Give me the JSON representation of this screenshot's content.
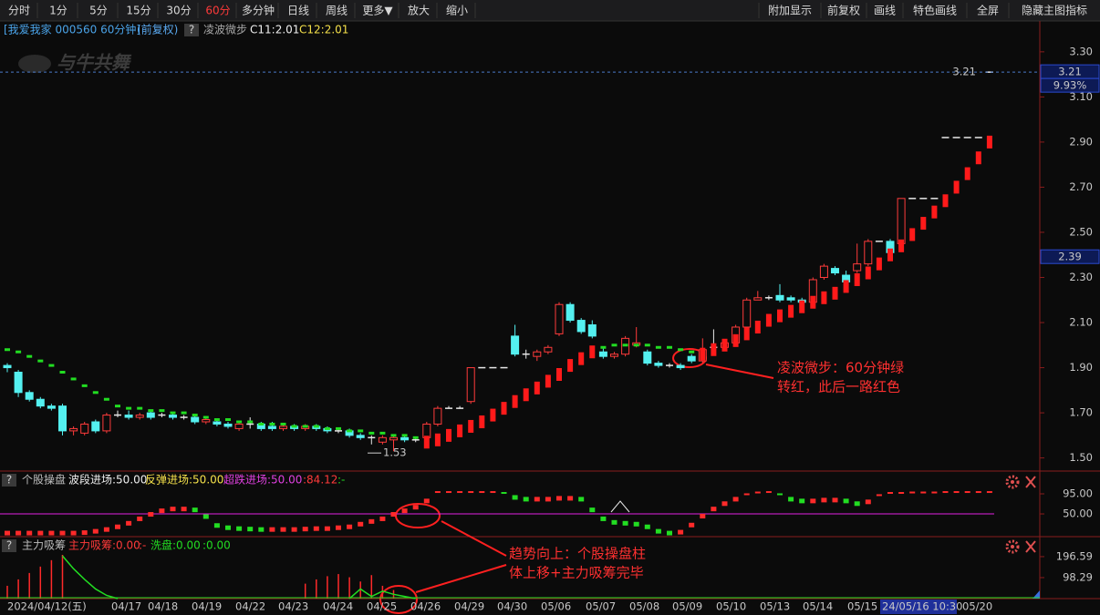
{
  "toolbar": {
    "left": [
      "分时",
      "1分",
      "5分",
      "15分",
      "30分",
      "60分",
      "多分钟",
      "日线",
      "周线",
      "更多▼",
      "放大",
      "缩小"
    ],
    "right": [
      "附加显示",
      "前复权",
      "画线",
      "特色画线",
      "全屏",
      "隐藏主图指标"
    ],
    "active_index": 5
  },
  "header": {
    "stock": "[我爱我家 000560 60分钟]",
    "adjust": "(前复权)",
    "help": "?",
    "indicator": "凌波微步",
    "c11": "C11:2.01",
    "c12": "C12:2.01"
  },
  "watermark": "与牛共舞",
  "panel2_header": {
    "help": "?",
    "name": "个股操盘",
    "a": "波段进场:50.00",
    "b": "反弹进场:50.00",
    "c": "超跌进场:50.00",
    "d": ":84.12",
    "e": ":-"
  },
  "panel3_header": {
    "help": "?",
    "name": "主力吸筹",
    "a": "主力吸筹:0.00",
    "b": ":-",
    "c": "洗盘:0.00",
    "d": ":0.00"
  },
  "annotations": [
    [
      "凌波微步：60分钟绿",
      "转红，此后一路红色"
    ],
    [
      "趋势向上：个股操盘柱",
      "体上移+主力吸筹完毕"
    ]
  ],
  "x_labels": [
    "2024/04/12(五)",
    "04/17",
    "04/18",
    "04/19",
    "04/22",
    "04/23",
    "04/24",
    "04/25",
    "04/26",
    "04/29",
    "04/30",
    "05/06",
    "05/07",
    "05/08",
    "05/09",
    "05/10",
    "05/13",
    "05/14",
    "05/15",
    "24/05/16 10:30",
    "05/20"
  ],
  "x_highlight_index": 19,
  "chart_data": [
    {
      "type": "candlestick",
      "ylim": [
        1.45,
        3.36
      ],
      "yticks": [
        {
          "value": 1.5,
          "label": "1.50"
        },
        {
          "value": 1.7,
          "label": "1.70"
        },
        {
          "value": 1.9,
          "label": "1.90"
        },
        {
          "value": 2.1,
          "label": "2.10"
        },
        {
          "value": 2.3,
          "label": "2.30"
        },
        {
          "value": 2.5,
          "label": "2.50"
        },
        {
          "value": 2.7,
          "label": "2.70"
        },
        {
          "value": 2.9,
          "label": "2.90"
        },
        {
          "value": 3.1,
          "label": "3.10"
        },
        {
          "value": 3.3,
          "label": "3.30"
        }
      ],
      "up_color": "#ff3b3b",
      "down_color": "#54f0f0",
      "flat_color": "#e8e8e8",
      "ohlc": [
        [
          1.91,
          1.92,
          1.88,
          1.9
        ],
        [
          1.88,
          1.89,
          1.77,
          1.79
        ],
        [
          1.79,
          1.8,
          1.75,
          1.76
        ],
        [
          1.76,
          1.77,
          1.72,
          1.73
        ],
        [
          1.73,
          1.74,
          1.71,
          1.72
        ],
        [
          1.73,
          1.74,
          1.6,
          1.62
        ],
        [
          1.62,
          1.64,
          1.6,
          1.63
        ],
        [
          1.61,
          1.66,
          1.6,
          1.65
        ],
        [
          1.66,
          1.67,
          1.61,
          1.62
        ],
        [
          1.62,
          1.7,
          1.61,
          1.69
        ],
        [
          1.69,
          1.71,
          1.68,
          1.69
        ],
        [
          1.69,
          1.71,
          1.67,
          1.68
        ],
        [
          1.68,
          1.7,
          1.67,
          1.69
        ],
        [
          1.7,
          1.71,
          1.67,
          1.68
        ],
        [
          1.69,
          1.7,
          1.68,
          1.69
        ],
        [
          1.69,
          1.7,
          1.67,
          1.68
        ],
        [
          1.68,
          1.69,
          1.67,
          1.68
        ],
        [
          1.68,
          1.69,
          1.65,
          1.66
        ],
        [
          1.66,
          1.68,
          1.65,
          1.67
        ],
        [
          1.66,
          1.67,
          1.64,
          1.65
        ],
        [
          1.65,
          1.66,
          1.63,
          1.64
        ],
        [
          1.63,
          1.66,
          1.62,
          1.65
        ],
        [
          1.65,
          1.68,
          1.63,
          1.65
        ],
        [
          1.65,
          1.66,
          1.62,
          1.63
        ],
        [
          1.64,
          1.66,
          1.62,
          1.63
        ],
        [
          1.63,
          1.65,
          1.62,
          1.64
        ],
        [
          1.64,
          1.65,
          1.62,
          1.63
        ],
        [
          1.63,
          1.65,
          1.62,
          1.64
        ],
        [
          1.64,
          1.65,
          1.62,
          1.63
        ],
        [
          1.63,
          1.64,
          1.61,
          1.62
        ],
        [
          1.62,
          1.63,
          1.61,
          1.62
        ],
        [
          1.62,
          1.63,
          1.59,
          1.6
        ],
        [
          1.6,
          1.61,
          1.58,
          1.59
        ],
        [
          1.59,
          1.6,
          1.56,
          1.59
        ],
        [
          1.57,
          1.6,
          1.56,
          1.59
        ],
        [
          1.58,
          1.6,
          1.53,
          1.59
        ],
        [
          1.59,
          1.6,
          1.57,
          1.58
        ],
        [
          1.58,
          1.59,
          1.57,
          1.58
        ],
        [
          1.59,
          1.66,
          1.58,
          1.65
        ],
        [
          1.65,
          1.73,
          1.64,
          1.72
        ],
        [
          1.72,
          1.73,
          1.72,
          1.72
        ],
        [
          1.72,
          1.73,
          1.72,
          1.72
        ],
        [
          1.75,
          1.9,
          1.74,
          1.9
        ],
        [
          1.9,
          1.9,
          1.9,
          1.9
        ],
        [
          1.9,
          1.9,
          1.9,
          1.9
        ],
        [
          1.9,
          1.9,
          1.9,
          1.9
        ],
        [
          2.04,
          2.09,
          1.95,
          1.96
        ],
        [
          1.96,
          1.98,
          1.94,
          1.96
        ],
        [
          1.95,
          1.98,
          1.93,
          1.97
        ],
        [
          1.97,
          2.0,
          1.96,
          1.99
        ],
        [
          2.05,
          2.19,
          2.04,
          2.18
        ],
        [
          2.18,
          2.19,
          2.1,
          2.11
        ],
        [
          2.11,
          2.12,
          2.05,
          2.06
        ],
        [
          2.09,
          2.11,
          2.03,
          2.04
        ],
        [
          1.97,
          1.99,
          1.94,
          1.95
        ],
        [
          1.95,
          1.97,
          1.94,
          1.96
        ],
        [
          1.96,
          2.04,
          1.95,
          2.03
        ],
        [
          2.0,
          2.08,
          1.99,
          2.01
        ],
        [
          1.97,
          1.98,
          1.91,
          1.92
        ],
        [
          1.92,
          1.93,
          1.9,
          1.91
        ],
        [
          1.91,
          1.92,
          1.9,
          1.91
        ],
        [
          1.91,
          1.92,
          1.89,
          1.9
        ],
        [
          1.95,
          1.96,
          1.92,
          1.93
        ],
        [
          1.93,
          2.03,
          1.92,
          1.98
        ],
        [
          1.99,
          2.07,
          1.98,
          1.99
        ],
        [
          1.99,
          2.02,
          1.99,
          2.01
        ],
        [
          2.01,
          2.09,
          2.0,
          2.08
        ],
        [
          2.08,
          2.21,
          2.07,
          2.2
        ],
        [
          2.2,
          2.24,
          2.2,
          2.21
        ],
        [
          2.21,
          2.22,
          2.2,
          2.21
        ],
        [
          2.22,
          2.27,
          2.19,
          2.2
        ],
        [
          2.21,
          2.22,
          2.19,
          2.2
        ],
        [
          2.2,
          2.21,
          2.18,
          2.19
        ],
        [
          2.19,
          2.3,
          2.18,
          2.29
        ],
        [
          2.3,
          2.36,
          2.29,
          2.35
        ],
        [
          2.34,
          2.35,
          2.31,
          2.32
        ],
        [
          2.31,
          2.33,
          2.27,
          2.28
        ],
        [
          2.33,
          2.45,
          2.32,
          2.36
        ],
        [
          2.36,
          2.47,
          2.35,
          2.46
        ],
        [
          2.46,
          2.46,
          2.46,
          2.46
        ],
        [
          2.46,
          2.47,
          2.41,
          2.41
        ],
        [
          2.45,
          2.65,
          2.42,
          2.65
        ],
        [
          2.65,
          2.65,
          2.65,
          2.65
        ],
        [
          2.65,
          2.65,
          2.65,
          2.65
        ],
        [
          2.65,
          2.65,
          2.65,
          2.65
        ],
        [
          2.92,
          2.92,
          2.92,
          2.92
        ],
        [
          2.92,
          2.92,
          2.92,
          2.92
        ],
        [
          2.92,
          2.92,
          2.92,
          2.92
        ],
        [
          2.92,
          2.92,
          2.92,
          2.92
        ],
        [
          3.21,
          3.21,
          3.21,
          3.21
        ]
      ],
      "series": [
        {
          "color": "#ff1a1a",
          "values": [
            null,
            null,
            null,
            null,
            null,
            null,
            null,
            null,
            null,
            null,
            null,
            null,
            null,
            null,
            null,
            null,
            null,
            null,
            null,
            null,
            null,
            null,
            null,
            null,
            null,
            null,
            null,
            null,
            null,
            null,
            null,
            null,
            null,
            null,
            null,
            null,
            null,
            null,
            1.57,
            1.58,
            1.6,
            1.62,
            1.64,
            1.66,
            1.69,
            1.72,
            1.75,
            1.78,
            1.81,
            1.84,
            1.87,
            1.91,
            1.94,
            1.97,
            null,
            null,
            null,
            null,
            null,
            null,
            null,
            null,
            null,
            1.96,
            1.98,
            2.0,
            2.02,
            2.05,
            2.08,
            2.11,
            2.13,
            2.15,
            2.17,
            2.19,
            2.21,
            2.23,
            2.26,
            2.29,
            2.32,
            2.36,
            2.4,
            2.44,
            2.49,
            2.54,
            2.59,
            2.64,
            2.7,
            2.76,
            2.83,
            2.9
          ]
        },
        {
          "color": "#22dd22",
          "values": [
            1.98,
            1.97,
            1.95,
            1.93,
            1.91,
            1.88,
            1.85,
            1.82,
            1.79,
            1.76,
            1.73,
            1.72,
            1.72,
            1.71,
            1.71,
            1.7,
            1.7,
            1.69,
            1.68,
            1.67,
            1.67,
            1.66,
            1.66,
            1.65,
            1.65,
            1.65,
            1.64,
            1.64,
            1.64,
            1.63,
            1.63,
            1.62,
            1.62,
            1.61,
            1.61,
            1.6,
            1.6,
            1.59,
            null,
            null,
            null,
            null,
            null,
            null,
            null,
            null,
            null,
            null,
            null,
            null,
            null,
            null,
            null,
            null,
            1.99,
            2.0,
            2.0,
            2.0,
            2.0,
            1.99,
            1.99,
            1.98,
            1.97,
            null,
            null,
            null,
            null,
            null,
            null,
            null,
            null,
            null,
            null,
            null,
            null,
            null,
            null,
            null,
            null,
            null,
            null,
            null,
            null,
            null,
            null,
            null,
            null,
            null,
            null,
            null
          ]
        }
      ],
      "last_price": {
        "value": 3.21,
        "label": "3.21"
      },
      "change_label": "9.93%",
      "cursor_price": {
        "value": 2.39,
        "label": "2.39"
      },
      "low_marker": {
        "value": 1.53,
        "label": "1.53"
      }
    },
    {
      "type": "line",
      "ylim": [
        1,
        140
      ],
      "yticks": [
        {
          "value": 50,
          "label": "50.00"
        },
        {
          "value": 95,
          "label": "95.00"
        }
      ],
      "up_color": "#ff2a2a",
      "down_color": "#22dd22",
      "level_color": "#e020e0",
      "values": [
        8,
        8,
        8,
        8,
        8,
        8,
        8,
        9,
        12,
        16,
        22,
        30,
        40,
        50,
        58,
        62,
        62,
        60,
        45,
        25,
        20,
        18,
        17,
        16,
        16,
        16,
        16,
        17,
        18,
        18,
        20,
        22,
        28,
        34,
        40,
        50,
        58,
        66,
        80,
        97,
        97,
        97,
        97,
        97,
        97,
        95,
        88,
        84,
        84,
        84,
        86,
        86,
        84,
        60,
        40,
        32,
        30,
        28,
        22,
        12,
        8,
        10,
        26,
        46,
        62,
        74,
        84,
        92,
        96,
        97,
        92,
        84,
        80,
        80,
        82,
        82,
        80,
        74,
        78,
        90,
        95,
        95,
        96,
        96,
        96,
        97,
        97,
        97,
        97,
        97
      ]
    },
    {
      "type": "bar",
      "ylim": [
        0,
        286
      ],
      "yticks": [
        {
          "value": 98.29,
          "label": "98.29"
        },
        {
          "value": 196.59,
          "label": "196.59"
        }
      ],
      "series": [
        {
          "color": "#ff2a2a",
          "values": [
            60,
            90,
            120,
            150,
            180,
            205,
            0,
            0,
            0,
            0,
            0,
            0,
            0,
            0,
            0,
            0,
            0,
            0,
            0,
            0,
            0,
            0,
            0,
            0,
            0,
            0,
            0,
            70,
            90,
            105,
            115,
            100,
            80,
            110,
            60,
            40,
            0,
            0,
            0,
            0,
            0,
            0,
            0,
            0,
            0,
            0,
            0,
            0,
            0,
            0,
            0,
            0,
            0,
            0,
            0,
            0,
            0,
            0,
            0,
            0,
            0,
            0,
            0,
            0,
            0,
            0,
            0,
            0,
            0,
            0,
            0,
            0,
            0,
            0,
            0,
            0,
            0,
            0,
            0,
            0,
            0,
            0,
            0,
            0,
            0,
            0,
            0,
            0,
            0,
            0
          ]
        },
        {
          "color": "#22dd22",
          "values": [
            null,
            null,
            null,
            null,
            null,
            200,
            140,
            90,
            45,
            15,
            0,
            null,
            null,
            null,
            null,
            null,
            null,
            null,
            null,
            null,
            null,
            null,
            null,
            null,
            null,
            null,
            null,
            null,
            null,
            null,
            null,
            0,
            45,
            10,
            35,
            20,
            10,
            0,
            null,
            null,
            null,
            null,
            null,
            null,
            null,
            null,
            null,
            null,
            null,
            null,
            null,
            null,
            null,
            null,
            null,
            null,
            null,
            null,
            null,
            null,
            null,
            null,
            null,
            null,
            null,
            null,
            null,
            null,
            null,
            null,
            null,
            null,
            null,
            null,
            null,
            null,
            null,
            null,
            null,
            null,
            null,
            null,
            null,
            null,
            null,
            null,
            null,
            null,
            null,
            null
          ]
        }
      ]
    }
  ]
}
